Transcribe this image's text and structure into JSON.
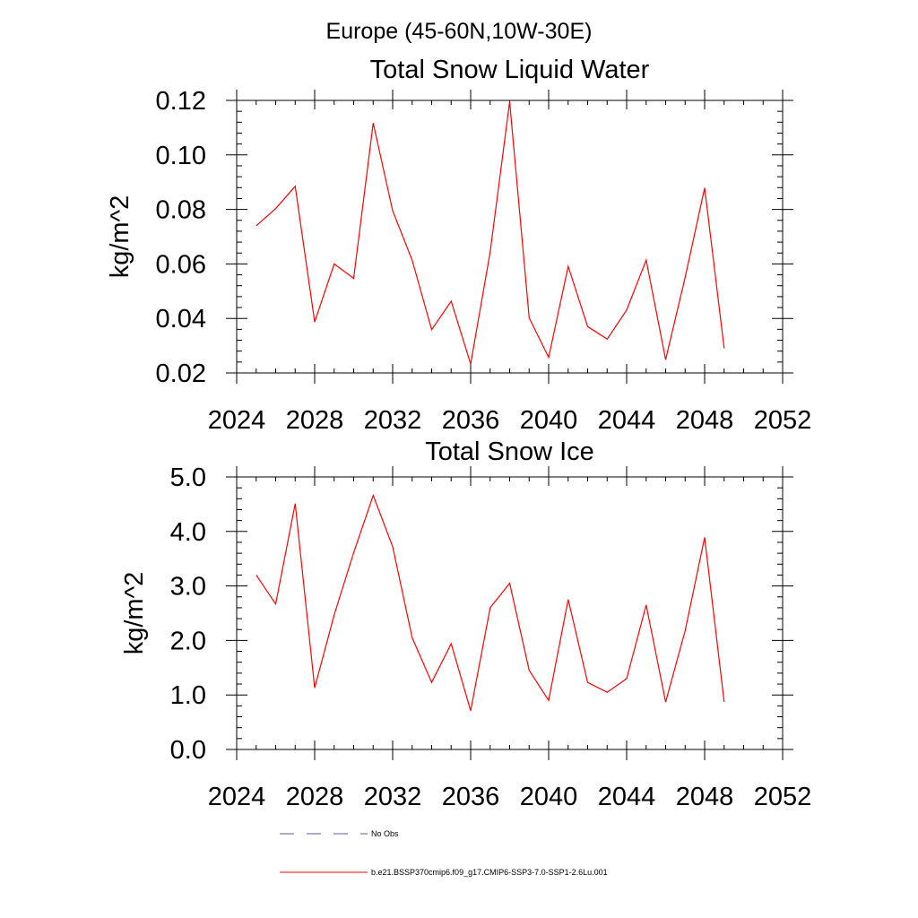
{
  "suptitle": "Europe (45-60N,10W-30E)",
  "line_color": "#ff0000",
  "chart_data": [
    {
      "type": "line",
      "title": "Total Snow Liquid Water",
      "ylabel": "kg/m^2",
      "xlabel": "",
      "xlim": [
        2024,
        2052
      ],
      "ylim": [
        0.02,
        0.12
      ],
      "xticks": [
        2024,
        2028,
        2032,
        2036,
        2040,
        2044,
        2048,
        2052
      ],
      "xtick_labels": [
        "2024",
        "2028",
        "2032",
        "2036",
        "2040",
        "2044",
        "2048",
        "2052"
      ],
      "yticks": [
        0.02,
        0.04,
        0.06,
        0.08,
        0.1,
        0.12
      ],
      "ytick_labels": [
        "0.02",
        "0.04",
        "0.06",
        "0.08",
        "0.10",
        "0.12"
      ],
      "grid": false,
      "series": [
        {
          "x": [
            2025,
            2026,
            2027,
            2028,
            2029,
            2030,
            2031,
            2032,
            2033,
            2034,
            2035,
            2036,
            2037,
            2038,
            2039,
            2040,
            2041,
            2042,
            2043,
            2044,
            2045,
            2046,
            2047,
            2048,
            2049
          ],
          "values": [
            0.074,
            0.0803,
            0.0885,
            0.0387,
            0.06,
            0.0547,
            0.1117,
            0.0795,
            0.0613,
            0.0359,
            0.0463,
            0.0233,
            0.0644,
            0.1195,
            0.0402,
            0.0257,
            0.0591,
            0.037,
            0.0324,
            0.0431,
            0.0614,
            0.0249,
            0.0551,
            0.0879,
            0.029
          ]
        }
      ]
    },
    {
      "type": "line",
      "title": "Total Snow Ice",
      "ylabel": "kg/m^2",
      "xlabel": "",
      "xlim": [
        2024,
        2052
      ],
      "ylim": [
        0.0,
        5.0
      ],
      "xticks": [
        2024,
        2028,
        2032,
        2036,
        2040,
        2044,
        2048,
        2052
      ],
      "xtick_labels": [
        "2024",
        "2028",
        "2032",
        "2036",
        "2040",
        "2044",
        "2048",
        "2052"
      ],
      "yticks": [
        0,
        1,
        2,
        3,
        4,
        5
      ],
      "ytick_labels": [
        "0.0",
        "1.0",
        "2.0",
        "3.0",
        "4.0",
        "5.0"
      ],
      "grid": false,
      "series": [
        {
          "x": [
            2025,
            2026,
            2027,
            2028,
            2029,
            2030,
            2031,
            2032,
            2033,
            2034,
            2035,
            2036,
            2037,
            2038,
            2039,
            2040,
            2041,
            2042,
            2043,
            2044,
            2045,
            2046,
            2047,
            2048,
            2049
          ],
          "values": [
            3.2,
            2.67,
            4.51,
            1.13,
            2.47,
            3.61,
            4.66,
            3.72,
            2.05,
            1.23,
            1.94,
            0.71,
            2.6,
            3.05,
            1.45,
            0.9,
            2.75,
            1.23,
            1.05,
            1.3,
            2.65,
            0.87,
            2.18,
            3.89,
            0.87
          ]
        }
      ]
    }
  ],
  "legend": {
    "placement": "bottom",
    "items": [
      {
        "label": "No Obs",
        "style": "dashed",
        "color": "#5a5aa0"
      },
      {
        "label": "b.e21.BSSP370cmip6.f09_g17.CMIP6-SSP3-7.0-SSP1-2.6Lu.001",
        "style": "solid",
        "color": "#ff0000"
      }
    ]
  }
}
